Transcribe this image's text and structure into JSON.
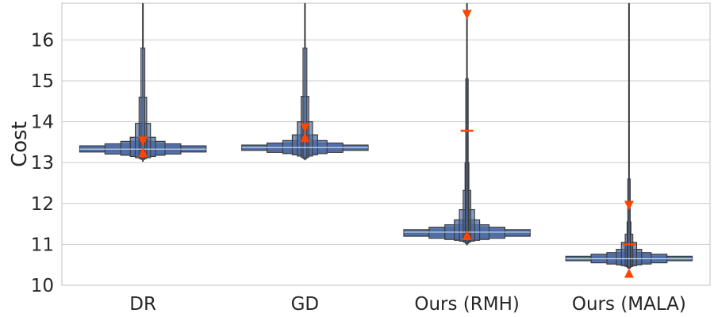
{
  "chart_data": {
    "type": "boxen",
    "ylabel": "Cost",
    "xlabel": "",
    "ylim": [
      10,
      16.9
    ],
    "yticks": [
      10,
      11,
      12,
      13,
      14,
      15,
      16
    ],
    "grid": true,
    "categories": [
      "DR",
      "GD",
      "Ours (RMH)",
      "Ours (MALA)"
    ],
    "colors": {
      "box_fill": "#4f6fa8",
      "box_edge": "#3a3a3a",
      "marker": "#ff4500",
      "grid": "#cccccc",
      "whisker": "#3a3a3a"
    },
    "series": [
      {
        "category": "DR",
        "median": 13.33,
        "whisker_low": 13.02,
        "whisker_high": 16.9,
        "boxes": [
          {
            "low": 13.26,
            "high": 13.41,
            "width": 1.0
          },
          {
            "low": 13.21,
            "high": 13.46,
            "width": 0.6
          },
          {
            "low": 13.18,
            "high": 13.52,
            "width": 0.35
          },
          {
            "low": 13.15,
            "high": 13.62,
            "width": 0.2
          },
          {
            "low": 13.12,
            "high": 13.96,
            "width": 0.12
          },
          {
            "low": 13.1,
            "high": 14.6,
            "width": 0.06
          },
          {
            "low": 13.08,
            "high": 15.8,
            "width": 0.03
          }
        ],
        "markers": [
          {
            "y": 13.52,
            "shape": "down"
          },
          {
            "y": 13.25,
            "shape": "up"
          }
        ]
      },
      {
        "category": "GD",
        "median": 13.37,
        "whisker_low": 13.06,
        "whisker_high": 16.9,
        "boxes": [
          {
            "low": 13.3,
            "high": 13.43,
            "width": 1.0
          },
          {
            "low": 13.25,
            "high": 13.48,
            "width": 0.6
          },
          {
            "low": 13.22,
            "high": 13.54,
            "width": 0.35
          },
          {
            "low": 13.19,
            "high": 13.68,
            "width": 0.2
          },
          {
            "low": 13.16,
            "high": 14.0,
            "width": 0.12
          },
          {
            "low": 13.13,
            "high": 14.62,
            "width": 0.06
          },
          {
            "low": 13.1,
            "high": 15.8,
            "width": 0.03
          }
        ],
        "markers": [
          {
            "y": 13.85,
            "shape": "down"
          },
          {
            "y": 13.62,
            "shape": "up"
          }
        ]
      },
      {
        "category": "Ours (RMH)",
        "median": 11.3,
        "whisker_low": 10.98,
        "whisker_high": 16.9,
        "boxes": [
          {
            "low": 11.2,
            "high": 11.36,
            "width": 1.0
          },
          {
            "low": 11.15,
            "high": 11.42,
            "width": 0.6
          },
          {
            "low": 11.12,
            "high": 11.48,
            "width": 0.35
          },
          {
            "low": 11.1,
            "high": 11.6,
            "width": 0.2
          },
          {
            "low": 11.08,
            "high": 11.85,
            "width": 0.12
          },
          {
            "low": 11.06,
            "high": 12.32,
            "width": 0.06
          },
          {
            "low": 11.04,
            "high": 13.0,
            "width": 0.03
          },
          {
            "low": 11.02,
            "high": 15.05,
            "width": 0.015
          }
        ],
        "markers": [
          {
            "y": 16.62,
            "shape": "down"
          },
          {
            "y": 13.78,
            "shape": "dash"
          },
          {
            "y": 11.22,
            "shape": "up"
          }
        ]
      },
      {
        "category": "Ours (MALA)",
        "median": 10.65,
        "whisker_low": 10.42,
        "whisker_high": 16.9,
        "boxes": [
          {
            "low": 10.6,
            "high": 10.71,
            "width": 1.0
          },
          {
            "low": 10.55,
            "high": 10.76,
            "width": 0.6
          },
          {
            "low": 10.52,
            "high": 10.8,
            "width": 0.35
          },
          {
            "low": 10.5,
            "high": 10.88,
            "width": 0.2
          },
          {
            "low": 10.48,
            "high": 11.05,
            "width": 0.12
          },
          {
            "low": 10.46,
            "high": 11.25,
            "width": 0.06
          },
          {
            "low": 10.44,
            "high": 11.55,
            "width": 0.03
          },
          {
            "low": 10.42,
            "high": 12.6,
            "width": 0.015
          }
        ],
        "markers": [
          {
            "y": 11.95,
            "shape": "down"
          },
          {
            "y": 11.0,
            "shape": "dash"
          },
          {
            "y": 10.3,
            "shape": "up"
          }
        ]
      }
    ]
  }
}
